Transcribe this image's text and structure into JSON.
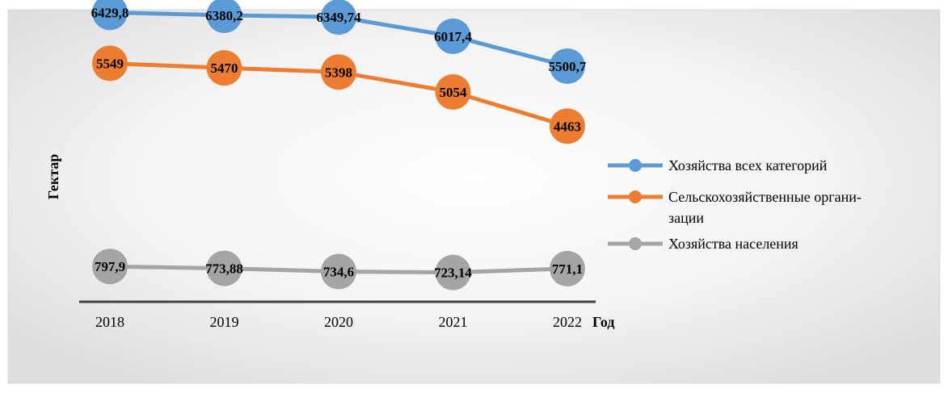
{
  "chart_data": {
    "type": "line",
    "title": "",
    "xlabel": "Год",
    "ylabel": "Гектар",
    "categories": [
      "2018",
      "2019",
      "2020",
      "2021",
      "2022"
    ],
    "series": [
      {
        "name": "Хозяйства всех категорий",
        "color": "#5B9BD5",
        "values": [
          6429.8,
          6380.2,
          6349.74,
          6017.4,
          5500.7
        ],
        "labels": [
          "6429,8",
          "6380,2",
          "6349,74",
          "6017,4",
          "5500,7"
        ]
      },
      {
        "name": "Сельскохозяйственные организации",
        "color": "#ED7D31",
        "values": [
          5549,
          5470,
          5398,
          5054,
          4463
        ],
        "labels": [
          "5549",
          "5470",
          "5398",
          "5054",
          "4463"
        ]
      },
      {
        "name": "Хозяйства населения",
        "color": "#A5A5A5",
        "values": [
          797.9,
          773.88,
          734.6,
          723.14,
          771.1
        ],
        "labels": [
          "797,9",
          "773,88",
          "734,6",
          "723,14",
          "771,1"
        ]
      }
    ],
    "legend": {
      "placement": "right",
      "lines": [
        [
          "Хозяйства всех категорий"
        ],
        [
          "Сельскохозяйственные органи-",
          "зации"
        ],
        [
          "Хозяйства населения"
        ]
      ]
    },
    "grid": false
  }
}
